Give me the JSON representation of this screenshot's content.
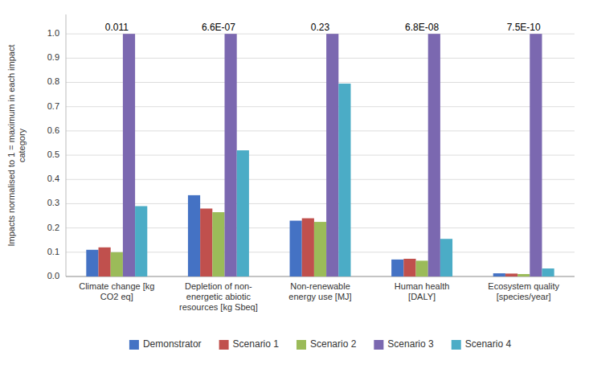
{
  "chart_data": {
    "type": "bar",
    "categories": [
      "Climate change [kg\nCO2 eq]",
      "Depletion of non-\nenergetic abiotic\nresources [kg Sbeq]",
      "Non-renewable\nenergy use [MJ]",
      "Human health\n[DALY]",
      "Ecosystem quality\n[species/year]"
    ],
    "series": [
      {
        "name": "Demonstrator",
        "color": "#4472C4",
        "values": [
          0.11,
          0.335,
          0.23,
          0.07,
          0.013
        ]
      },
      {
        "name": "Scenario 1",
        "color": "#C0504D",
        "values": [
          0.12,
          0.28,
          0.24,
          0.073,
          0.012
        ]
      },
      {
        "name": "Scenario 2",
        "color": "#9BBB59",
        "values": [
          0.1,
          0.265,
          0.225,
          0.065,
          0.01
        ]
      },
      {
        "name": "Scenario 3",
        "color": "#7B68B0",
        "values": [
          1.0,
          1.0,
          1.0,
          1.0,
          1.0
        ]
      },
      {
        "name": "Scenario 4",
        "color": "#4BACC6",
        "values": [
          0.29,
          0.52,
          0.795,
          0.155,
          0.033
        ]
      }
    ],
    "annotations": [
      "0.011",
      "6.6E-07",
      "0.23",
      "6.8E-08",
      "7.5E-10"
    ],
    "ylabel": "Impacts normalised to 1 = maximum in each impact\ncategory",
    "ylim": [
      0,
      1.08
    ],
    "yticks": [
      {
        "value": 0,
        "label": "0.0"
      },
      0.1,
      0.2,
      0.3,
      0.4,
      0.5,
      0.6,
      0.7,
      0.8,
      0.9,
      {
        "value": 1,
        "label": "1.0"
      }
    ],
    "grid": true,
    "legend": "bottom"
  }
}
